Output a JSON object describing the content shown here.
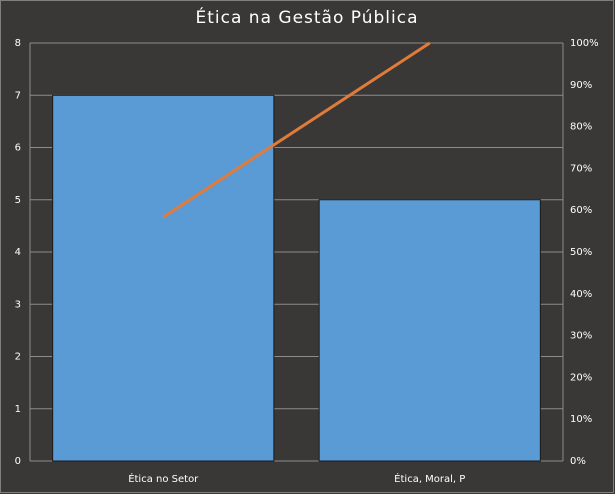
{
  "chart_data": {
    "type": "pareto",
    "title": "Ética na Gestão Pública",
    "categories": [
      "Ética no Setor",
      "Ética, Moral, P"
    ],
    "series": [
      {
        "type": "bar",
        "color": "#5b9bd5",
        "values": [
          7,
          5
        ]
      },
      {
        "type": "line",
        "color": "#e07b39",
        "axis": "y2",
        "values": [
          58.33,
          100
        ]
      }
    ],
    "ylim": [
      0,
      8
    ],
    "yticks": [
      0,
      1,
      2,
      3,
      4,
      5,
      6,
      7,
      8
    ],
    "y2lim": [
      0,
      100
    ],
    "y2ticks": [
      {
        "value": 0,
        "label": "0%"
      },
      {
        "value": 10,
        "label": "10%"
      },
      {
        "value": 20,
        "label": "20%"
      },
      {
        "value": 30,
        "label": "30%"
      },
      {
        "value": 40,
        "label": "40%"
      },
      {
        "value": 50,
        "label": "50%"
      },
      {
        "value": 60,
        "label": "60%"
      },
      {
        "value": 70,
        "label": "70%"
      },
      {
        "value": 80,
        "label": "80%"
      },
      {
        "value": 90,
        "label": "90%"
      },
      {
        "value": 100,
        "label": "100%"
      }
    ],
    "grid": true
  }
}
